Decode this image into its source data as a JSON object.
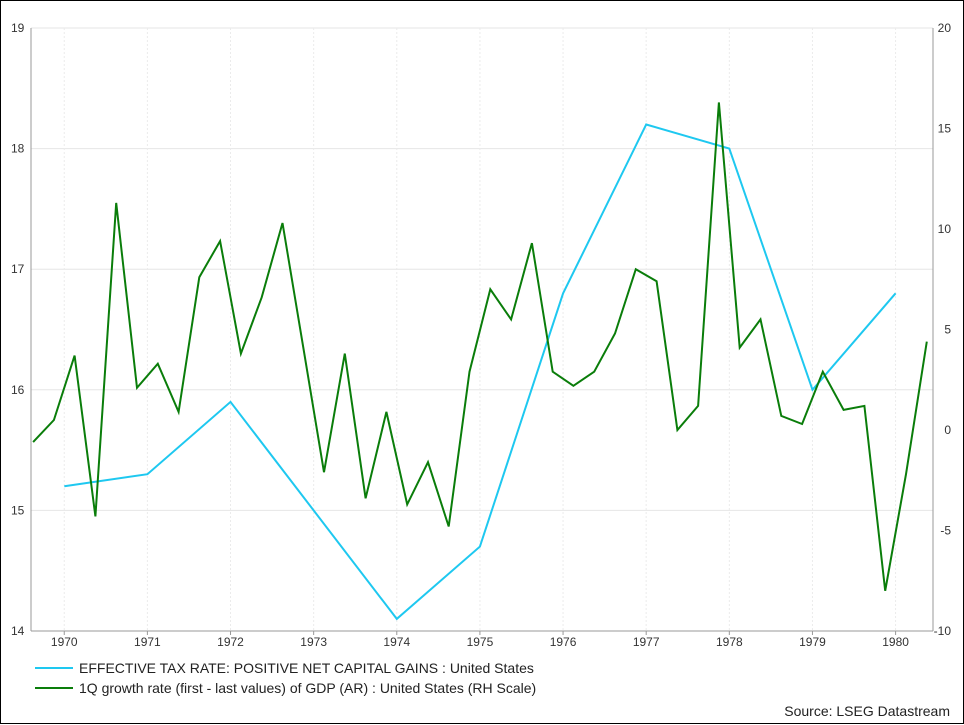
{
  "chart_data": {
    "type": "line",
    "source": "Source: LSEG Datastream",
    "x_tick_labels": [
      "1970",
      "1971",
      "1972",
      "1973",
      "1974",
      "1975",
      "1976",
      "1977",
      "1978",
      "1979",
      "1980"
    ],
    "xlim": [
      1969.6,
      1980.45
    ],
    "y_left": {
      "lim": [
        14,
        19
      ],
      "ticks": [
        "14",
        "15",
        "16",
        "17",
        "18",
        "19"
      ]
    },
    "y_right": {
      "lim": [
        -10,
        20
      ],
      "ticks": [
        "-10",
        "-5",
        "0",
        "5",
        "10",
        "15",
        "20"
      ]
    },
    "grid": true,
    "legend_position": "bottom-left",
    "series": [
      {
        "name": "EFFECTIVE TAX RATE: POSITIVE NET CAPITAL GAINS : United States",
        "color": "#1ec8f0",
        "axis": "left",
        "x": [
          1970,
          1971,
          1972,
          1974,
          1975,
          1976,
          1977,
          1978,
          1979,
          1980
        ],
        "y": [
          15.2,
          15.3,
          15.9,
          14.1,
          14.7,
          16.8,
          18.2,
          18.0,
          16.0,
          16.8
        ]
      },
      {
        "name": "1Q growth rate (first - last values) of GDP (AR) : United States (RH Scale)",
        "color": "#0a7d0a",
        "axis": "right",
        "x": [
          1969.625,
          1969.875,
          1970.125,
          1970.375,
          1970.625,
          1970.875,
          1971.125,
          1971.375,
          1971.625,
          1971.875,
          1972.125,
          1972.375,
          1972.625,
          1972.875,
          1973.125,
          1973.375,
          1973.625,
          1973.875,
          1974.125,
          1974.375,
          1974.625,
          1974.875,
          1975.125,
          1975.375,
          1975.625,
          1975.875,
          1976.125,
          1976.375,
          1976.625,
          1976.875,
          1977.125,
          1977.375,
          1977.625,
          1977.875,
          1978.125,
          1978.375,
          1978.625,
          1978.875,
          1979.125,
          1979.375,
          1979.625,
          1979.875,
          1980.125,
          1980.375
        ],
        "y": [
          -0.6,
          0.5,
          3.7,
          -4.3,
          11.3,
          2.1,
          3.3,
          0.9,
          7.6,
          9.4,
          3.8,
          6.6,
          10.3,
          4.1,
          -2.1,
          3.8,
          -3.4,
          0.9,
          -3.7,
          -1.6,
          -4.8,
          2.9,
          7.0,
          5.5,
          9.3,
          2.9,
          2.2,
          2.9,
          4.8,
          8.0,
          7.4,
          0.0,
          1.2,
          16.3,
          4.1,
          5.5,
          0.7,
          0.3,
          2.9,
          1.0,
          1.2,
          -8.0,
          -2.2,
          4.4
        ]
      }
    ]
  }
}
